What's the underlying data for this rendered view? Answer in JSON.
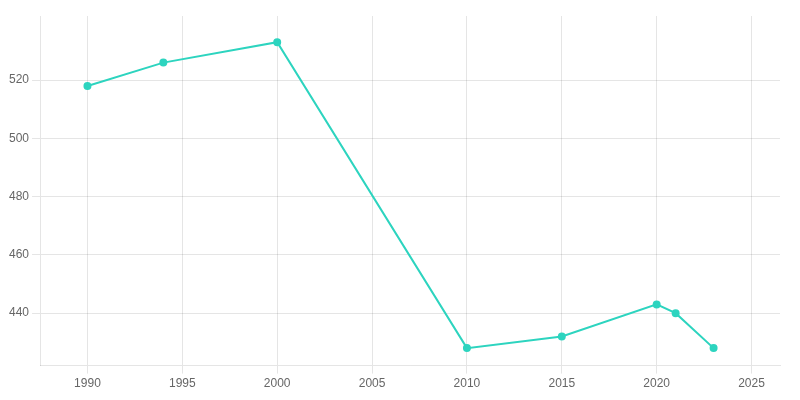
{
  "chart_data": {
    "type": "line",
    "x": [
      1990,
      1994,
      2000,
      2010,
      2015,
      2020,
      2021,
      2023
    ],
    "values": [
      518,
      526,
      533,
      428,
      432,
      443,
      440,
      428
    ],
    "color": "#2dd4bf",
    "marker": "circle",
    "xlim": [
      1987.5,
      2026.5
    ],
    "xticks": [
      1990,
      1995,
      2000,
      2005,
      2010,
      2015,
      2020,
      2025
    ],
    "ylim": [
      422,
      542
    ],
    "yticks": [
      440,
      460,
      480,
      500,
      520
    ],
    "grid": true
  }
}
